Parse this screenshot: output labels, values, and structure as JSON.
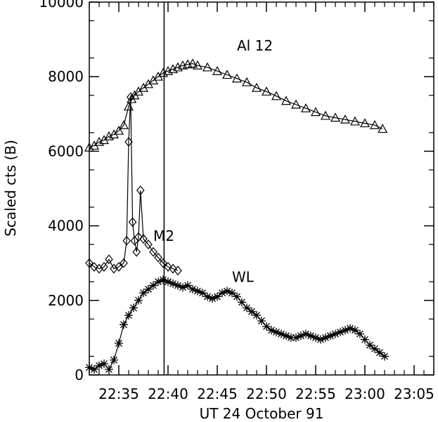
{
  "chart_data": {
    "type": "line",
    "title": "",
    "xlabel": "UT 24 October 91",
    "ylabel": "Scaled cts (B)",
    "xlim": [
      "22:32",
      "23:07"
    ],
    "ylim": [
      0,
      10000
    ],
    "x_unit": "UT time (hh:mm)",
    "x_ticks": [
      "22:35",
      "22:40",
      "22:45",
      "22:50",
      "22:55",
      "23:00",
      "23:05"
    ],
    "y_ticks": [
      0,
      2000,
      4000,
      6000,
      8000,
      10000
    ],
    "grid": false,
    "legend": "none",
    "vertical_line_x": "22:39.6",
    "series": [
      {
        "name": "Al 12",
        "marker": "triangle",
        "x": [
          "22:32.0",
          "22:32.5",
          "22:33.0",
          "22:33.5",
          "22:34.0",
          "22:34.5",
          "22:35.0",
          "22:35.5",
          "22:36.0",
          "22:36.3",
          "22:36.6",
          "22:37.0",
          "22:37.5",
          "22:38.0",
          "22:38.5",
          "22:39.0",
          "22:39.5",
          "22:40.0",
          "22:40.5",
          "22:41.0",
          "22:41.5",
          "22:42.0",
          "22:42.5",
          "22:43.0",
          "22:44.0",
          "22:45.0",
          "22:46.0",
          "22:47.0",
          "22:48.0",
          "22:49.0",
          "22:50.0",
          "22:51.0",
          "22:52.0",
          "22:53.0",
          "22:54.0",
          "22:55.0",
          "22:56.0",
          "22:57.0",
          "22:58.0",
          "22:59.0",
          "23:00.0",
          "23:01.0",
          "23:01.8"
        ],
        "y": [
          6100,
          6150,
          6250,
          6300,
          6400,
          6450,
          6550,
          6700,
          7200,
          7400,
          7500,
          7600,
          7700,
          7800,
          7900,
          8000,
          8100,
          8150,
          8200,
          8250,
          8300,
          8330,
          8350,
          8300,
          8250,
          8150,
          8050,
          7950,
          7850,
          7700,
          7600,
          7480,
          7350,
          7250,
          7150,
          7050,
          6950,
          6900,
          6850,
          6800,
          6750,
          6700,
          6600
        ]
      },
      {
        "name": "M2",
        "marker": "diamond",
        "x": [
          "22:32.0",
          "22:32.5",
          "22:33.0",
          "22:33.5",
          "22:34.0",
          "22:34.5",
          "22:35.0",
          "22:35.5",
          "22:35.8",
          "22:36.0",
          "22:36.2",
          "22:36.4",
          "22:36.6",
          "22:36.8",
          "22:37.0",
          "22:37.2",
          "22:37.5",
          "22:38.0",
          "22:38.5",
          "22:39.0",
          "22:39.5",
          "22:40.0",
          "22:40.5",
          "22:41.0"
        ],
        "y": [
          3000,
          2900,
          2850,
          2900,
          3100,
          2850,
          2900,
          3000,
          3600,
          6250,
          7450,
          4100,
          3600,
          3300,
          3700,
          4950,
          3650,
          3500,
          3300,
          3150,
          3000,
          2900,
          2850,
          2800
        ]
      },
      {
        "name": "WL",
        "marker": "asterisk",
        "x": [
          "22:32.0",
          "22:32.5",
          "22:33.0",
          "22:33.5",
          "22:34.0",
          "22:34.5",
          "22:35.0",
          "22:35.5",
          "22:36.0",
          "22:36.5",
          "22:37.0",
          "22:37.5",
          "22:38.0",
          "22:38.5",
          "22:39.0",
          "22:39.5",
          "22:40.0",
          "22:40.5",
          "22:41.0",
          "22:41.5",
          "22:42.0",
          "22:42.5",
          "22:43.0",
          "22:43.5",
          "22:44.0",
          "22:44.5",
          "22:45.0",
          "22:45.5",
          "22:46.0",
          "22:46.5",
          "22:47.0",
          "22:47.5",
          "22:48.0",
          "22:48.5",
          "22:49.0",
          "22:49.5",
          "22:50.0",
          "22:50.5",
          "22:51.0",
          "22:51.5",
          "22:52.0",
          "22:52.5",
          "22:53.0",
          "22:53.5",
          "22:54.0",
          "22:54.5",
          "22:55.0",
          "22:55.5",
          "22:56.0",
          "22:56.5",
          "22:57.0",
          "22:57.5",
          "22:58.0",
          "22:58.5",
          "22:59.0",
          "22:59.5",
          "23:00.0",
          "23:00.5",
          "23:01.0",
          "23:01.5",
          "23:02.0"
        ],
        "y": [
          200,
          150,
          250,
          300,
          150,
          400,
          850,
          1350,
          1600,
          1800,
          2000,
          2200,
          2300,
          2400,
          2500,
          2550,
          2500,
          2450,
          2400,
          2350,
          2400,
          2300,
          2250,
          2200,
          2100,
          2050,
          2100,
          2200,
          2250,
          2200,
          2100,
          1950,
          1800,
          1700,
          1600,
          1450,
          1300,
          1200,
          1150,
          1100,
          1050,
          1000,
          1000,
          1050,
          1100,
          1050,
          1000,
          950,
          1000,
          1050,
          1100,
          1150,
          1200,
          1250,
          1200,
          1100,
          950,
          800,
          700,
          600,
          500
        ]
      }
    ]
  }
}
